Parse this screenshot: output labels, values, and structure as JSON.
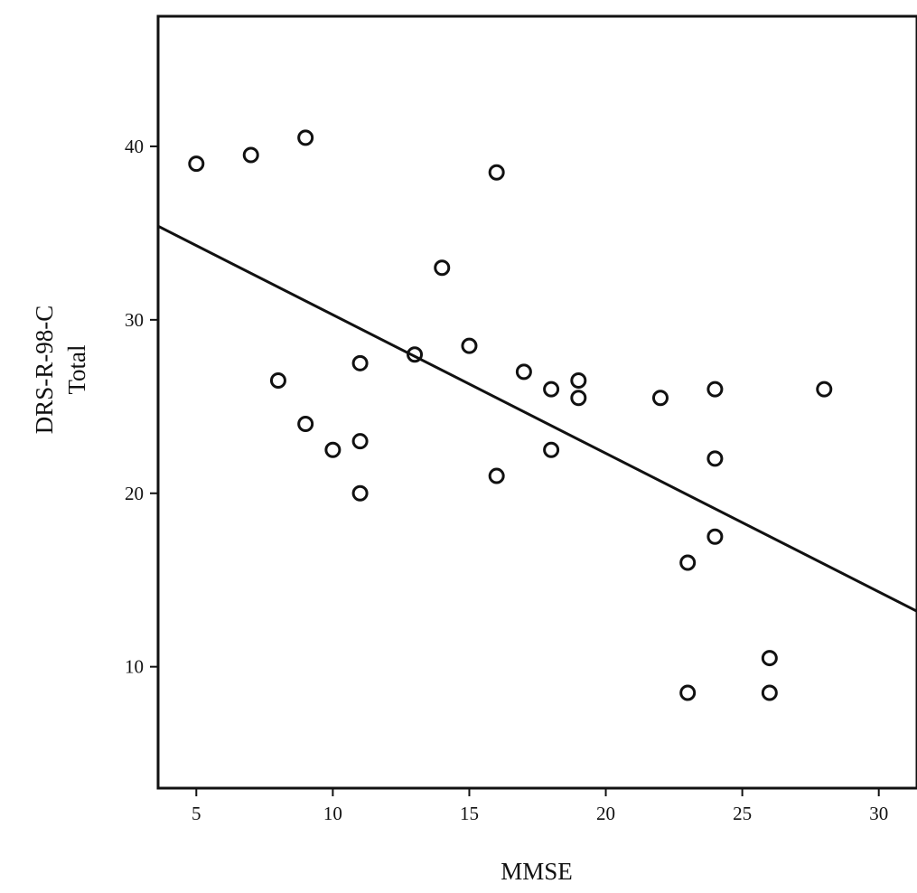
{
  "chart_data": {
    "type": "scatter",
    "xlabel": "MMSE",
    "ylabel_lines": [
      "DRS-R-98-C",
      "Total"
    ],
    "xlim": [
      3.6,
      31.4
    ],
    "ylim": [
      3.0,
      47.5
    ],
    "xticks": [
      5,
      10,
      15,
      20,
      25,
      30
    ],
    "yticks": [
      10,
      20,
      30,
      40
    ],
    "grid": false,
    "legend": "none",
    "points": [
      {
        "x": 5,
        "y": 39
      },
      {
        "x": 7,
        "y": 39.5
      },
      {
        "x": 9,
        "y": 40.5
      },
      {
        "x": 16,
        "y": 38.5
      },
      {
        "x": 14,
        "y": 33
      },
      {
        "x": 13,
        "y": 28
      },
      {
        "x": 15,
        "y": 28.5
      },
      {
        "x": 11,
        "y": 27.5
      },
      {
        "x": 8,
        "y": 26.5
      },
      {
        "x": 17,
        "y": 27
      },
      {
        "x": 18,
        "y": 26
      },
      {
        "x": 19,
        "y": 26.5
      },
      {
        "x": 19,
        "y": 25.5
      },
      {
        "x": 22,
        "y": 25.5
      },
      {
        "x": 24,
        "y": 26
      },
      {
        "x": 28,
        "y": 26
      },
      {
        "x": 9,
        "y": 24
      },
      {
        "x": 10,
        "y": 22.5
      },
      {
        "x": 11,
        "y": 23
      },
      {
        "x": 18,
        "y": 22.5
      },
      {
        "x": 24,
        "y": 22
      },
      {
        "x": 16,
        "y": 21
      },
      {
        "x": 11,
        "y": 20
      },
      {
        "x": 24,
        "y": 17.5
      },
      {
        "x": 23,
        "y": 16
      },
      {
        "x": 26,
        "y": 10.5
      },
      {
        "x": 23,
        "y": 8.5
      },
      {
        "x": 26,
        "y": 8.5
      }
    ],
    "fit_line": {
      "x": [
        3.6,
        31.4
      ],
      "y": [
        35.4,
        13.2
      ]
    },
    "marker": "open-circle",
    "colors": {
      "axis": "#111111",
      "marker": "#111111",
      "line": "#111111"
    }
  }
}
